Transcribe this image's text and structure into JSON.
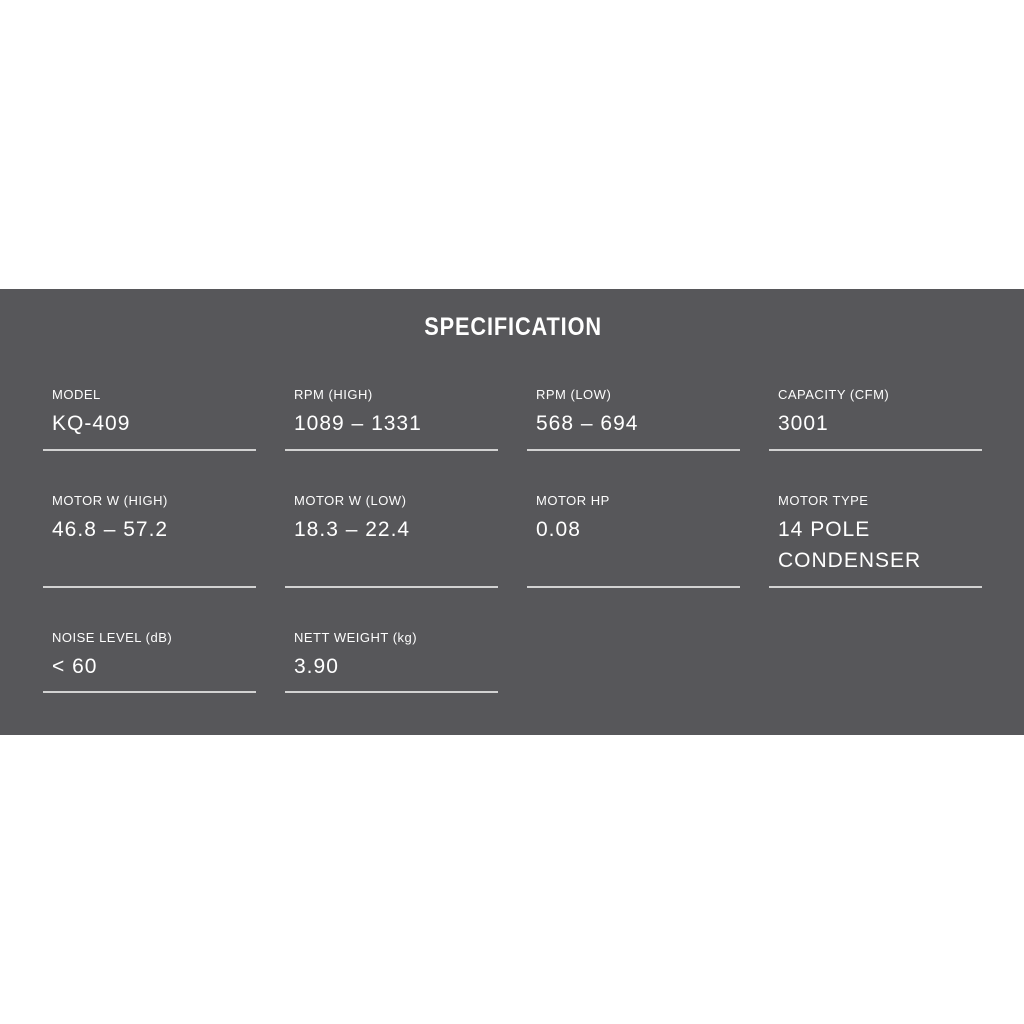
{
  "colors": {
    "page_background": "#ffffff",
    "panel_background": "#57575a",
    "text": "#ffffff",
    "divider": "#d2d2d2"
  },
  "spec": {
    "title": "SPECIFICATION",
    "rows": [
      {
        "cells": [
          {
            "label": "MODEL",
            "value_lines": [
              "KQ-409"
            ]
          },
          {
            "label": "RPM (HIGH)",
            "value_lines": [
              "1089 – 1331"
            ]
          },
          {
            "label": "RPM (LOW)",
            "value_lines": [
              "568 – 694"
            ]
          },
          {
            "label": "CAPACITY (CFM)",
            "value_lines": [
              "3001"
            ]
          }
        ]
      },
      {
        "cells": [
          {
            "label": "MOTOR W (HIGH)",
            "value_lines": [
              "46.8 – 57.2"
            ]
          },
          {
            "label": "MOTOR W (LOW)",
            "value_lines": [
              "18.3 – 22.4"
            ]
          },
          {
            "label": "MOTOR HP",
            "value_lines": [
              "0.08"
            ]
          },
          {
            "label": "MOTOR TYPE",
            "value_lines": [
              "14 POLE",
              "CONDENSER"
            ]
          }
        ]
      },
      {
        "cells": [
          {
            "label": "NOISE LEVEL (dB)",
            "value_lines": [
              "< 60"
            ]
          },
          {
            "label": "NETT WEIGHT (kg)",
            "value_lines": [
              "3.90"
            ]
          }
        ]
      }
    ]
  }
}
